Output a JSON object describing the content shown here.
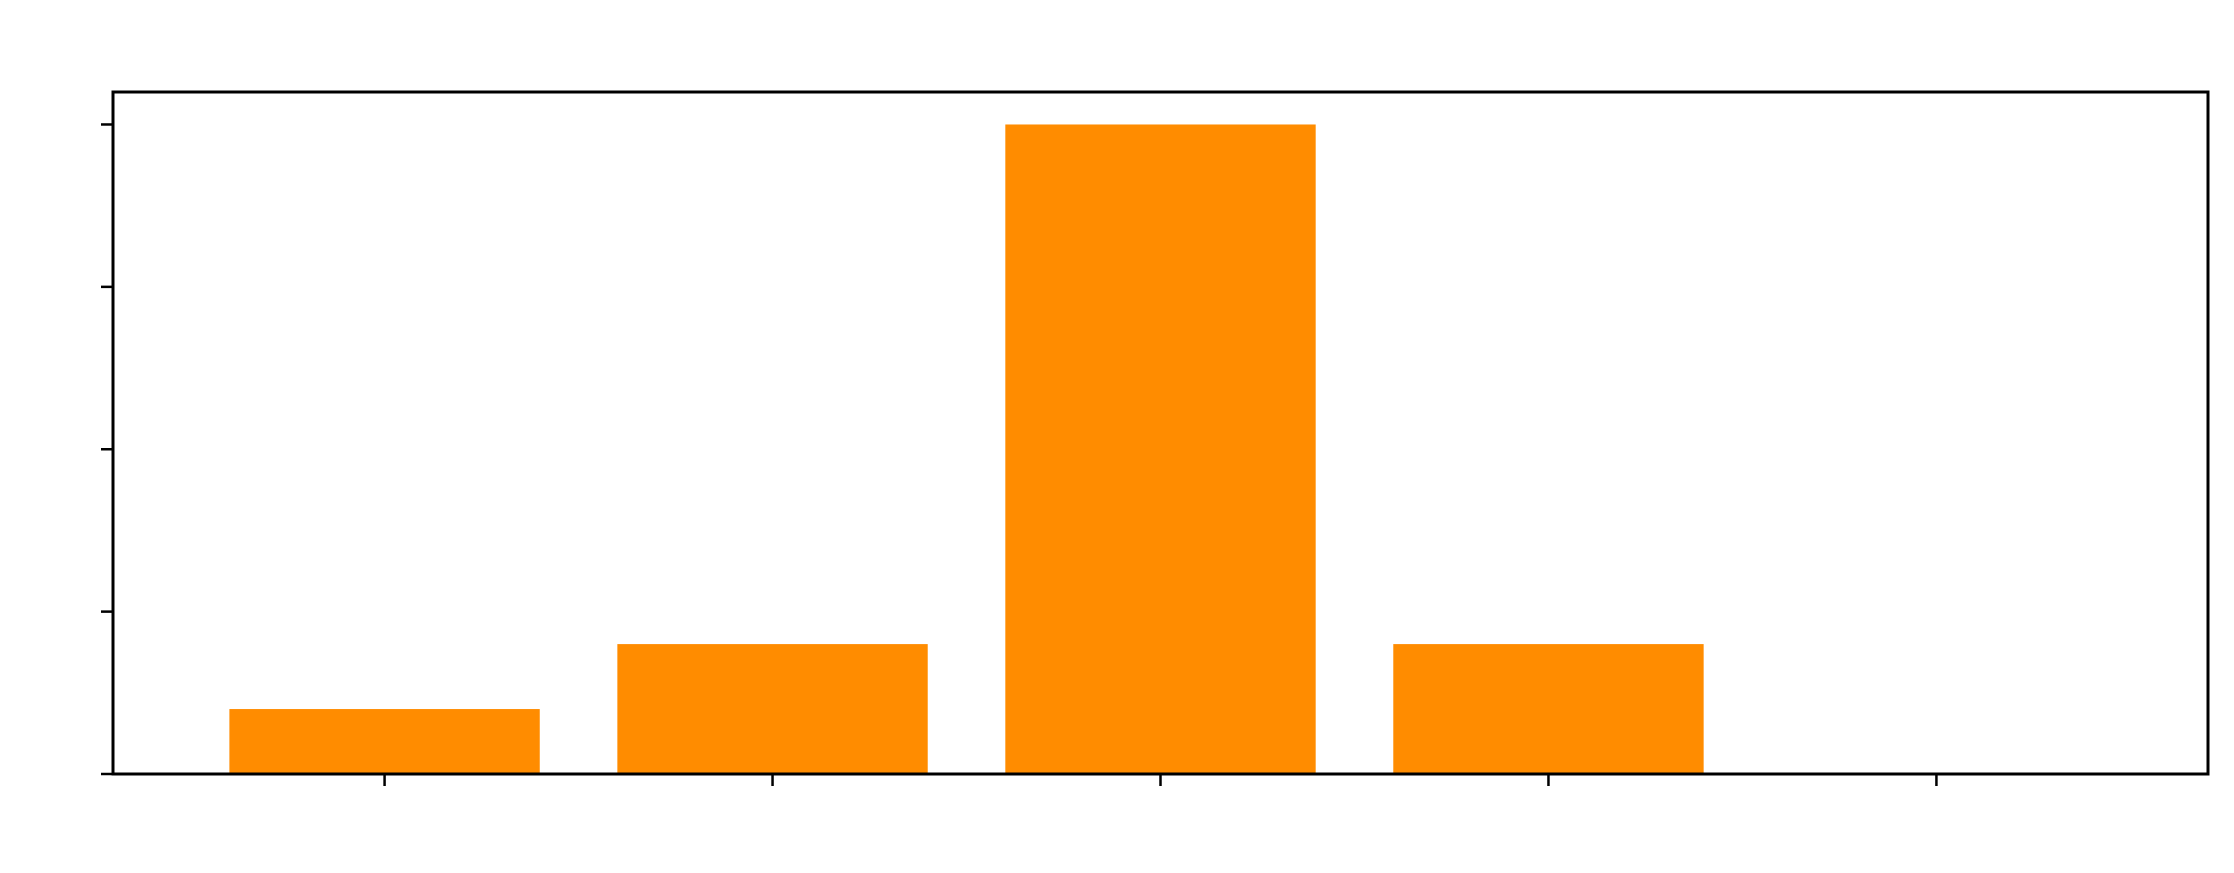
{
  "chart_data": {
    "type": "bar",
    "categories": [
      "",
      "",
      "",
      "",
      ""
    ],
    "values": [
      2,
      4,
      20,
      4,
      0
    ],
    "ylim": [
      0,
      21
    ],
    "yticks": [
      0,
      5,
      10,
      15,
      20
    ],
    "bar_color": "#FF8C00",
    "title": "",
    "xlabel": "",
    "ylabel": "",
    "grid": false,
    "axis_color": "#000000",
    "background": "#FFFFFF"
  }
}
